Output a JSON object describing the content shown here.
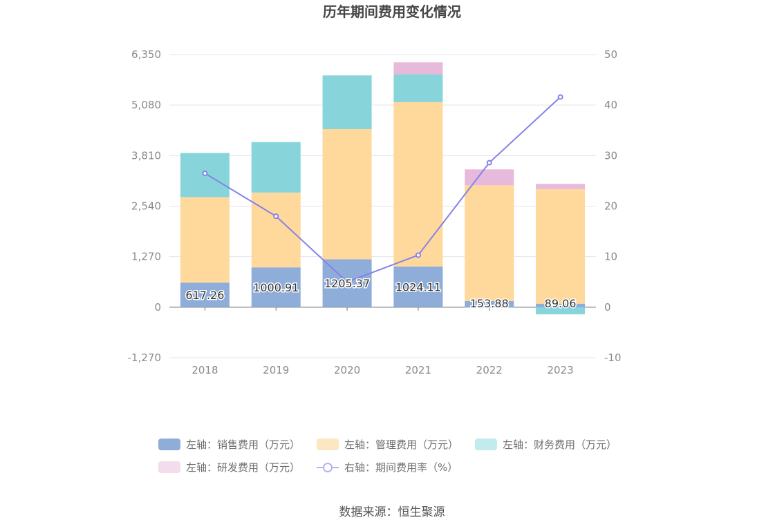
{
  "chart_data": {
    "type": "bar",
    "title": "历年期间费用变化情况",
    "categories": [
      "2018",
      "2019",
      "2020",
      "2021",
      "2022",
      "2023"
    ],
    "left_axis": {
      "ticks": [
        "6,350",
        "5,080",
        "3,810",
        "2,540",
        "1,270",
        "0",
        "-1,270"
      ],
      "ylim": [
        -1270,
        6350
      ]
    },
    "right_axis": {
      "ticks": [
        "50",
        "40",
        "30",
        "20",
        "10",
        "0",
        "-10"
      ],
      "ylim": [
        -10,
        50
      ]
    },
    "series": [
      {
        "name": "左轴：销售费用（万元）",
        "type": "bar",
        "stack": "left",
        "color": "#8eadd9",
        "values": [
          617.26,
          1000.91,
          1205.37,
          1024.11,
          153.88,
          89.06
        ],
        "labels": [
          "617.26",
          "1000.91",
          "1205.37",
          "1024.11",
          "153.88",
          "89.06"
        ]
      },
      {
        "name": "左轴：管理费用（万元）",
        "type": "bar",
        "stack": "left",
        "color": "#ffd89c",
        "values": [
          2150,
          1880,
          3270,
          4130,
          2910,
          2880
        ]
      },
      {
        "name": "左轴：财务费用（万元）",
        "type": "bar",
        "stack": "left",
        "color": "#87d5da",
        "values": [
          1110,
          1270,
          1350,
          700,
          -10,
          -180
        ]
      },
      {
        "name": "左轴：研发费用（万元）",
        "type": "bar",
        "stack": "left",
        "color": "#e7b9db",
        "values": [
          0,
          0,
          0,
          300,
          400,
          130
        ]
      },
      {
        "name": "右轴：期间费用率（%）",
        "type": "line",
        "axis": "right",
        "color": "#8582e8",
        "values": [
          26.5,
          18.0,
          5.0,
          10.3,
          28.6,
          41.6
        ]
      }
    ],
    "legend_position": "bottom",
    "grid": true
  },
  "source": "数据来源：恒生聚源"
}
